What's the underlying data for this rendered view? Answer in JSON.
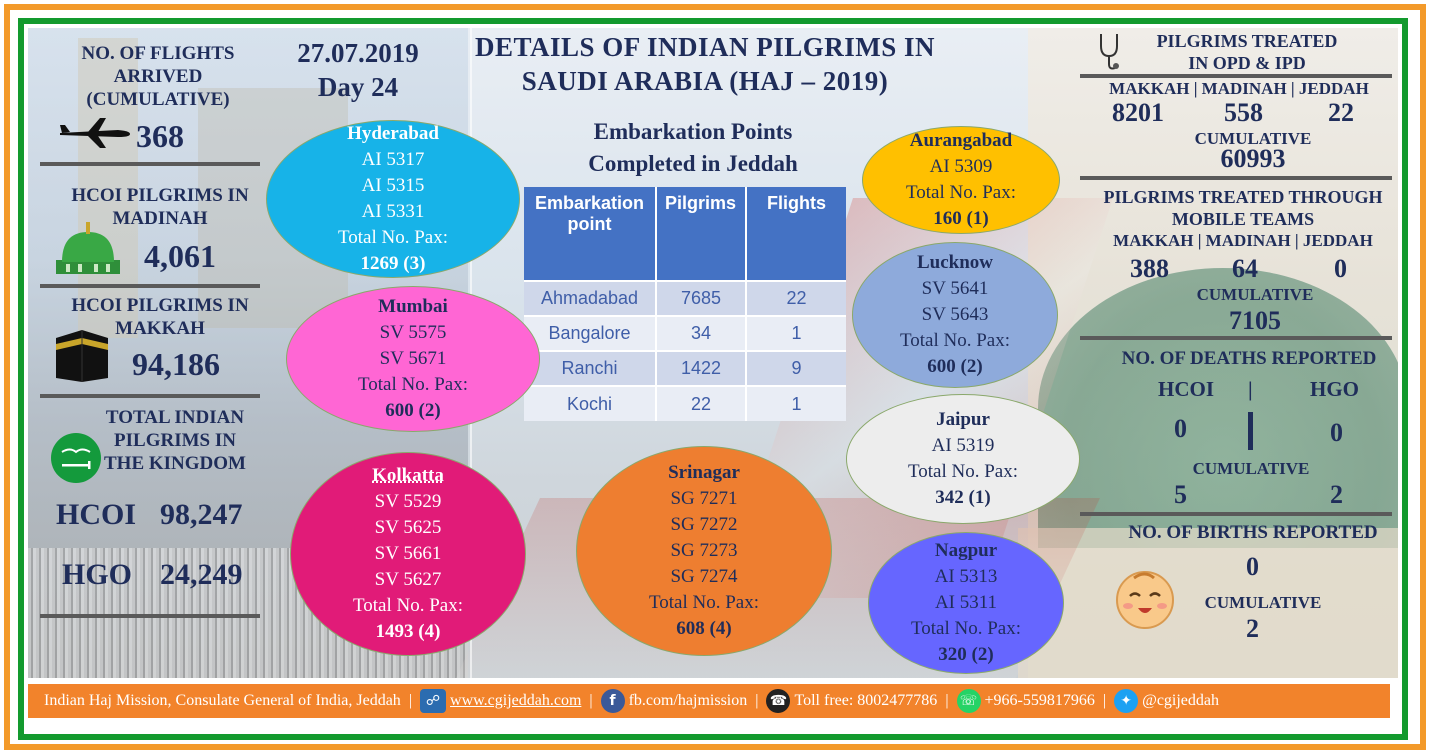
{
  "colors": {
    "navy": "#1f2d5a",
    "outer_border": "#f39a2a",
    "inner_border": "#139a2e",
    "footer_bg": "#f2832b",
    "table_header": "#4472c4"
  },
  "header": {
    "date": "27.07.2019",
    "day": "Day 24",
    "title_line1": "DETAILS OF INDIAN PILGRIMS IN",
    "title_line2": "SAUDI ARABIA (HAJ – 2019)"
  },
  "left": {
    "flights": {
      "heading": "NO. OF FLIGHTS ARRIVED (CUMULATIVE)",
      "line1": "NO. OF FLIGHTS",
      "line2": "ARRIVED",
      "line3": "(CUMULATIVE)",
      "value": "368",
      "icon": "airplane-icon"
    },
    "madinah": {
      "line1": "HCOI PILGRIMS IN",
      "line2": "MADINAH",
      "value": "4,061",
      "icon": "green-dome-icon"
    },
    "makkah": {
      "line1": "HCOI PILGRIMS IN",
      "line2": "MAKKAH",
      "value": "94,186",
      "icon": "kaaba-icon"
    },
    "total": {
      "line1": "TOTAL INDIAN",
      "line2": "PILGRIMS IN",
      "line3": "THE KINGDOM",
      "icon": "saudi-flag-icon",
      "hcoi_label": "HCOI",
      "hcoi_value": "98,247",
      "hgo_label": "HGO",
      "hgo_value": "24,249"
    }
  },
  "embarkation": {
    "heading_line1": "Embarkation Points",
    "heading_line2": "Completed in Jeddah",
    "columns": [
      "Embarkation point",
      "Pilgrims",
      "Flights"
    ],
    "col1_line1": "Embarkation",
    "col1_line2": "point",
    "rows": [
      {
        "point": "Ahmadabad",
        "pilgrims": "7685",
        "flights": "22"
      },
      {
        "point": "Bangalore",
        "pilgrims": "34",
        "flights": "1"
      },
      {
        "point": "Ranchi",
        "pilgrims": "1422",
        "flights": "9"
      },
      {
        "point": "Kochi",
        "pilgrims": "22",
        "flights": "1"
      }
    ]
  },
  "ellipses": {
    "hyderabad": {
      "city": "Hyderabad",
      "flights": [
        "AI 5317",
        "AI 5315",
        "AI 5331"
      ],
      "pax_label": "Total No. Pax:",
      "total": "1269 (3)",
      "color": "#17b3e8"
    },
    "mumbai": {
      "city": "Mumbai",
      "flights": [
        "SV 5575",
        "SV 5671"
      ],
      "pax_label": "Total No. Pax:",
      "total": "600 (2)",
      "color": "#ff66d4"
    },
    "kolkatta": {
      "city": "Kolkatta",
      "flights": [
        "SV 5529",
        "SV 5625",
        "SV 5661",
        "SV 5627"
      ],
      "pax_label": "Total No. Pax:",
      "total": "1493 (4)",
      "color": "#e11b78"
    },
    "srinagar": {
      "city": "Srinagar",
      "flights": [
        "SG 7271",
        "SG 7272",
        "SG 7273",
        "SG 7274"
      ],
      "pax_label": "Total No. Pax:",
      "total": "608 (4)",
      "color": "#ee7e30"
    },
    "aurangabad": {
      "city": "Aurangabad",
      "flights": [
        "AI 5309"
      ],
      "pax_label": "Total No. Pax:",
      "total": "160 (1)",
      "color": "#ffc000"
    },
    "lucknow": {
      "city": "Lucknow",
      "flights": [
        "SV 5641",
        "SV 5643"
      ],
      "pax_label": "Total No. Pax:",
      "total": "600 (2)",
      "color": "#8eaadb"
    },
    "jaipur": {
      "city": "Jaipur",
      "flights": [
        "AI 5319"
      ],
      "pax_label": "Total No. Pax:",
      "total": "342 (1)",
      "color": "#ededed"
    },
    "nagpur": {
      "city": "Nagpur",
      "flights": [
        "AI 5313",
        "AI 5311"
      ],
      "pax_label": "Total No. Pax:",
      "total": "320 (2)",
      "color": "#6666ff"
    }
  },
  "right": {
    "opd": {
      "line1": "PILGRIMS TREATED",
      "line2": "IN OPD & IPD",
      "icon": "stethoscope-icon",
      "cities": "MAKKAH | MADINAH | JEDDAH",
      "makkah": "8201",
      "madinah": "558",
      "jeddah": "22",
      "cumulative_label": "CUMULATIVE",
      "cumulative": "60993"
    },
    "mobile": {
      "line1": "PILGRIMS TREATED THROUGH",
      "line2": "MOBILE TEAMS",
      "cities": "MAKKAH | MADINAH | JEDDAH",
      "makkah": "388",
      "madinah": "64",
      "jeddah": "0",
      "cumulative_label": "CUMULATIVE",
      "cumulative": "7105"
    },
    "deaths": {
      "heading": "NO. OF DEATHS REPORTED",
      "hcoi_label": "HCOI",
      "sep": "|",
      "hgo_label": "HGO",
      "hcoi": "0",
      "hgo": "0",
      "cumulative_label": "CUMULATIVE",
      "hcoi_cum": "5",
      "hgo_cum": "2"
    },
    "births": {
      "heading": "NO. OF BIRTHS REPORTED",
      "value": "0",
      "cumulative_label": "CUMULATIVE",
      "cumulative": "2",
      "icon": "baby-face-icon"
    }
  },
  "footer": {
    "org": "Indian Haj Mission, Consulate General of India, Jeddah",
    "website": "www.cgijeddah.com",
    "facebook": "fb.com/hajmission",
    "tollfree": "Toll free: 8002477786",
    "whatsapp": "+966-559817966",
    "twitter": "@cgijeddah",
    "sep": "|",
    "icons": [
      "globe-icon",
      "facebook-icon",
      "phone-icon",
      "whatsapp-icon",
      "twitter-icon"
    ]
  }
}
